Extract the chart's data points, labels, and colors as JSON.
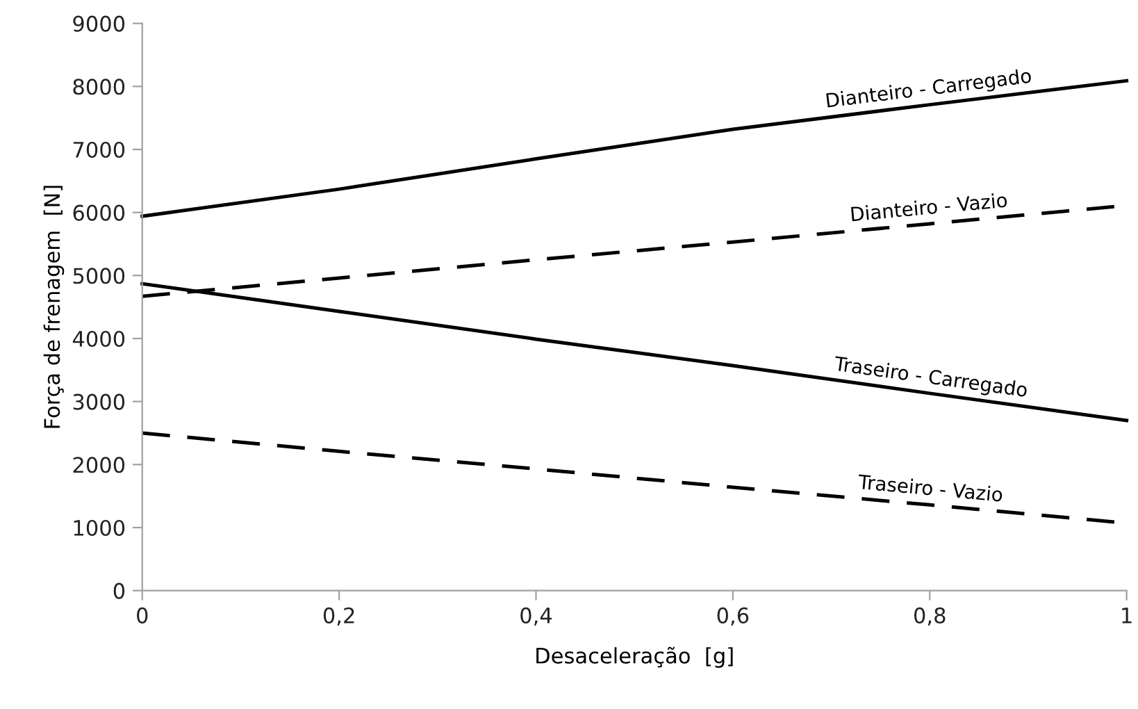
{
  "chart_data": {
    "type": "line",
    "xlabel": "Desaceleração  [g]",
    "ylabel": "Força de frenagem  [N]",
    "x": [
      0,
      0.2,
      0.4,
      0.6,
      0.8,
      1
    ],
    "series": [
      {
        "name": "Dianteiro - Carregado",
        "color": "#000000",
        "line_style": "solid",
        "values": [
          5940,
          6370,
          6850,
          7320,
          7710,
          8090
        ]
      },
      {
        "name": "Dianteiro - Vazio",
        "color": "#000000",
        "line_style": "dashed",
        "values": [
          4670,
          4960,
          5250,
          5530,
          5820,
          6110
        ]
      },
      {
        "name": "Traseiro - Carregado",
        "color": "#000000",
        "line_style": "solid",
        "values": [
          4870,
          4430,
          3990,
          3570,
          3130,
          2700
        ]
      },
      {
        "name": "Traseiro - Vazio",
        "color": "#000000",
        "line_style": "dashed",
        "values": [
          2500,
          2210,
          1930,
          1640,
          1360,
          1070
        ]
      }
    ],
    "xlim": [
      0,
      1
    ],
    "ylim": [
      0,
      9000
    ],
    "xticks": [
      0,
      {
        "value": 0.2,
        "label": "0,2"
      },
      {
        "value": 0.4,
        "label": "0,4"
      },
      {
        "value": 0.6,
        "label": "0,6"
      },
      {
        "value": 0.8,
        "label": "0,8"
      },
      1
    ],
    "yticks": [
      0,
      1000,
      2000,
      3000,
      4000,
      5000,
      6000,
      7000,
      8000,
      9000
    ],
    "grid": false,
    "legend": false,
    "marker": "none"
  }
}
